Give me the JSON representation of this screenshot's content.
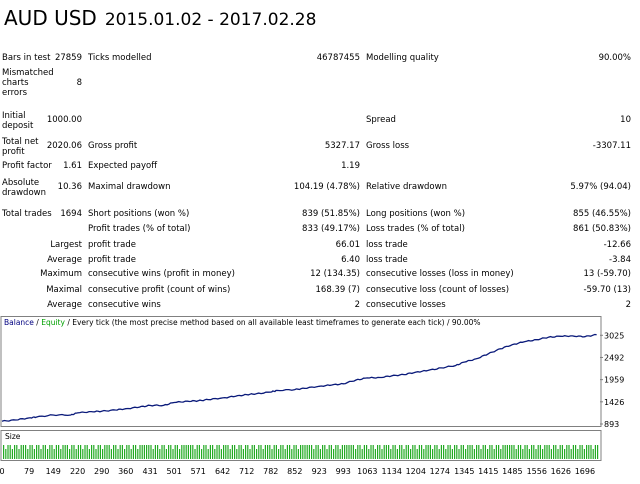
{
  "header": {
    "symbol": "AUD USD",
    "date_range": "2015.01.02 - 2017.02.28"
  },
  "stats": {
    "bars_in_test": {
      "label": "Bars in test",
      "value": "27859"
    },
    "ticks_modelled": {
      "label": "Ticks modelled",
      "value": "46787455"
    },
    "modelling_quality": {
      "label": "Modelling quality",
      "value": "90.00%"
    },
    "mismatched": {
      "label": "Mismatched charts errors",
      "value": "8"
    },
    "initial_deposit": {
      "label": "Initial deposit",
      "value": "1000.00"
    },
    "spread": {
      "label": "Spread",
      "value": "10"
    },
    "total_net_profit": {
      "label": "Total net profit",
      "value": "2020.06"
    },
    "gross_profit": {
      "label": "Gross profit",
      "value": "5327.17"
    },
    "gross_loss": {
      "label": "Gross loss",
      "value": "-3307.11"
    },
    "profit_factor": {
      "label": "Profit factor",
      "value": "1.61"
    },
    "expected_payoff": {
      "label": "Expected payoff",
      "value": "1.19"
    },
    "absolute_drawdown": {
      "label": "Absolute drawdown",
      "value": "10.36"
    },
    "maximal_drawdown": {
      "label": "Maximal drawdown",
      "value": "104.19 (4.78%)"
    },
    "relative_drawdown": {
      "label": "Relative drawdown",
      "value": "5.97% (94.04)"
    },
    "total_trades": {
      "label": "Total trades",
      "value": "1694"
    },
    "short_positions": {
      "label": "Short positions (won %)",
      "value": "839 (51.85%)"
    },
    "long_positions": {
      "label": "Long positions (won %)",
      "value": "855 (46.55%)"
    },
    "profit_trades": {
      "label": "Profit trades (% of total)",
      "value": "833 (49.17%)"
    },
    "loss_trades": {
      "label": "Loss trades (% of total)",
      "value": "861 (50.83%)"
    },
    "largest": {
      "label": "Largest",
      "profit_label": "profit trade",
      "profit_value": "66.01",
      "loss_label": "loss trade",
      "loss_value": "-12.66"
    },
    "average": {
      "label": "Average",
      "profit_label": "profit trade",
      "profit_value": "6.40",
      "loss_label": "loss trade",
      "loss_value": "-3.84"
    },
    "maximum": {
      "label": "Maximum",
      "wins_label": "consecutive wins (profit in money)",
      "wins_value": "12 (134.35)",
      "losses_label": "consecutive losses (loss in money)",
      "losses_value": "13 (-59.70)"
    },
    "maximal": {
      "label": "Maximal",
      "profit_label": "consecutive profit (count of wins)",
      "profit_value": "168.39 (7)",
      "loss_label": "consecutive loss (count of losses)",
      "loss_value": "-59.70 (13)"
    },
    "average_consec": {
      "label": "Average",
      "wins_label": "consecutive wins",
      "wins_value": "2",
      "losses_label": "consecutive losses",
      "losses_value": "2"
    }
  },
  "legend": {
    "balance": "Balance",
    "sep": " / ",
    "equity": "Equity",
    "desc": " / Every tick (the most precise method based on all available least timeframes to generate each tick) / 90.00%"
  },
  "size_label": "Size",
  "colors": {
    "balance_line": "#0a1a7a",
    "size_bars": "#22aa22",
    "equity_text": "#00a000",
    "legend_text": "#000080"
  },
  "chart_data": {
    "type": "line",
    "title": "",
    "series": [
      {
        "name": "Balance",
        "x": [
          0,
          40,
          79,
          100,
          149,
          200,
          220,
          260,
          290,
          330,
          360,
          400,
          431,
          470,
          501,
          540,
          571,
          600,
          642,
          680,
          712,
          740,
          782,
          800,
          852,
          880,
          923,
          960,
          993,
          1030,
          1063,
          1100,
          1134,
          1170,
          1204,
          1240,
          1278,
          1320,
          1345,
          1380,
          1415,
          1450,
          1485,
          1520,
          1556,
          1590,
          1626,
          1660,
          1696,
          1730
        ],
        "y": [
          960,
          990,
          1040,
          1060,
          1110,
          1110,
          1160,
          1190,
          1200,
          1230,
          1260,
          1300,
          1340,
          1340,
          1410,
          1440,
          1450,
          1480,
          1520,
          1560,
          1600,
          1620,
          1660,
          1700,
          1720,
          1750,
          1800,
          1830,
          1860,
          1950,
          2000,
          2010,
          2050,
          2080,
          2140,
          2180,
          2240,
          2300,
          2380,
          2460,
          2580,
          2700,
          2800,
          2870,
          2920,
          2980,
          3000,
          3010,
          2990,
          3040
        ]
      }
    ],
    "y_ticks": [
      "3025",
      "2492",
      "1959",
      "1426",
      "893"
    ],
    "y_range": [
      893,
      3200
    ],
    "x_ticks": [
      "0",
      "79",
      "149",
      "220",
      "290",
      "360",
      "431",
      "501",
      "571",
      "642",
      "712",
      "782",
      "852",
      "923",
      "993",
      "1063",
      "1134",
      "1204",
      "1274",
      "1345",
      "1415",
      "1485",
      "1556",
      "1626",
      "1696"
    ],
    "x_range": [
      0,
      1740
    ],
    "size_panel_label": "Size",
    "grid": false
  }
}
